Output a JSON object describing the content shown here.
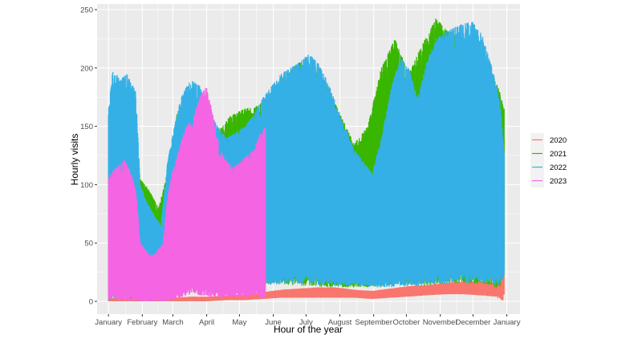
{
  "chart_data": {
    "type": "line",
    "title": "",
    "xlabel": "Hour of the year",
    "ylabel": "Hourly visits",
    "ylim": [
      0,
      250
    ],
    "yticks": [
      0,
      50,
      100,
      150,
      200,
      250
    ],
    "x_unit": "hour of the year",
    "xlim": [
      -250,
      9050
    ],
    "xticks": [
      {
        "label": "January",
        "hour": 0
      },
      {
        "label": "February",
        "hour": 744
      },
      {
        "label": "March",
        "hour": 1416
      },
      {
        "label": "April",
        "hour": 2160
      },
      {
        "label": "May",
        "hour": 2880
      },
      {
        "label": "June",
        "hour": 3624
      },
      {
        "label": "July",
        "hour": 4344
      },
      {
        "label": "August",
        "hour": 5088
      },
      {
        "label": "September",
        "hour": 5832
      },
      {
        "label": "October",
        "hour": 6552
      },
      {
        "label": "November",
        "hour": 7296
      },
      {
        "label": "December",
        "hour": 8016
      },
      {
        "label": "January",
        "hour": 8760
      }
    ],
    "grid": true,
    "background": "#ebebeb",
    "legend": {
      "position": "right",
      "title": ""
    },
    "series": [
      {
        "name": "2020",
        "color": "#f8766d",
        "x_hours": [
          0,
          300,
          700,
          1000,
          1400,
          1800,
          2200,
          2600,
          3000,
          3400,
          3800,
          4200,
          4600,
          5000,
          5400,
          5800,
          6200,
          6600,
          7000,
          7400,
          7800,
          8200,
          8500,
          8700
        ],
        "lower": [
          0,
          0,
          0,
          0,
          0,
          0,
          0,
          1,
          1,
          2,
          3,
          3,
          3,
          3,
          3,
          2,
          3,
          4,
          5,
          6,
          6,
          5,
          4,
          0
        ],
        "upper": [
          3,
          3,
          3,
          3,
          3,
          4,
          4,
          5,
          6,
          8,
          10,
          11,
          12,
          12,
          10,
          9,
          11,
          13,
          14,
          16,
          17,
          17,
          16,
          140
        ]
      },
      {
        "name": "2021",
        "color": "#39b600",
        "x_hours": [
          0,
          200,
          500,
          700,
          900,
          1100,
          1300,
          1500,
          1800,
          2100,
          2400,
          2700,
          3000,
          3300,
          3600,
          3900,
          4200,
          4500,
          4800,
          5100,
          5400,
          5700,
          6000,
          6300,
          6600,
          6900,
          7200,
          7500,
          7800,
          8100,
          8400,
          8600,
          8700
        ],
        "lower": [
          4,
          3,
          2,
          2,
          2,
          3,
          5,
          8,
          10,
          12,
          12,
          14,
          14,
          14,
          15,
          14,
          13,
          13,
          12,
          12,
          12,
          12,
          13,
          14,
          14,
          13,
          14,
          15,
          16,
          15,
          14,
          10,
          30
        ],
        "upper": [
          160,
          165,
          160,
          105,
          95,
          80,
          110,
          160,
          175,
          155,
          145,
          160,
          165,
          168,
          180,
          195,
          205,
          200,
          185,
          160,
          135,
          150,
          200,
          225,
          195,
          220,
          243,
          230,
          225,
          230,
          200,
          180,
          165
        ]
      },
      {
        "name": "2022",
        "color": "#35b0e6",
        "x_hours": [
          0,
          100,
          250,
          400,
          600,
          700,
          850,
          1000,
          1150,
          1300,
          1450,
          1600,
          1800,
          2000,
          2200,
          2400,
          2600,
          2800,
          3000,
          3200,
          3400,
          3600,
          3800,
          4000,
          4200,
          4400,
          4600,
          4800,
          5000,
          5200,
          5400,
          5600,
          5800,
          6000,
          6200,
          6400,
          6600,
          6800,
          7000,
          7200,
          7400,
          7600,
          7800,
          8000,
          8200,
          8400,
          8600,
          8700
        ],
        "lower": [
          0,
          2,
          2,
          2,
          1,
          1,
          1,
          1,
          1,
          2,
          4,
          10,
          12,
          15,
          16,
          17,
          18,
          18,
          16,
          15,
          14,
          14,
          15,
          15,
          15,
          15,
          14,
          14,
          13,
          13,
          13,
          13,
          12,
          12,
          12,
          13,
          13,
          13,
          14,
          15,
          15,
          16,
          16,
          16,
          16,
          15,
          14,
          20
        ],
        "upper": [
          165,
          200,
          190,
          195,
          180,
          100,
          85,
          75,
          65,
          120,
          150,
          175,
          190,
          185,
          165,
          150,
          140,
          145,
          150,
          160,
          175,
          185,
          195,
          200,
          205,
          212,
          205,
          190,
          170,
          150,
          130,
          120,
          110,
          140,
          180,
          210,
          200,
          175,
          205,
          225,
          230,
          235,
          238,
          240,
          230,
          205,
          175,
          130
        ]
      },
      {
        "name": "2023",
        "color": "#f564e3",
        "x_hours": [
          0,
          80,
          200,
          350,
          500,
          600,
          700,
          800,
          900,
          1000,
          1100,
          1200,
          1300,
          1400,
          1550,
          1700,
          1850,
          2000,
          2150,
          2300,
          2450,
          2600,
          2750,
          2900,
          3050,
          3200,
          3350,
          3450
        ],
        "lower": [
          0,
          2,
          1,
          0,
          0,
          0,
          0,
          0,
          0,
          0,
          0,
          0,
          0,
          0,
          2,
          5,
          6,
          5,
          4,
          3,
          3,
          3,
          3,
          3,
          3,
          3,
          3,
          3
        ],
        "upper": [
          105,
          112,
          115,
          122,
          110,
          95,
          50,
          45,
          40,
          40,
          45,
          50,
          90,
          110,
          130,
          150,
          155,
          175,
          185,
          160,
          130,
          120,
          115,
          120,
          125,
          130,
          145,
          150
        ]
      }
    ]
  }
}
